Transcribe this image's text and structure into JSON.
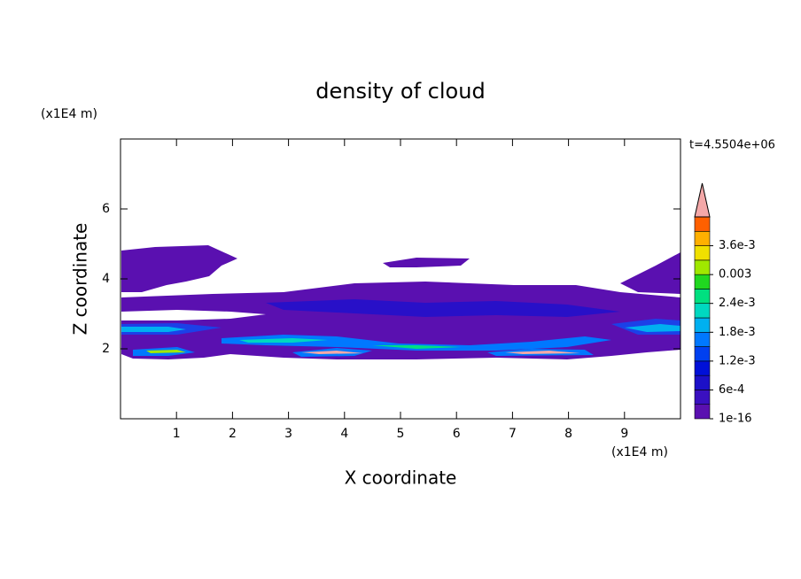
{
  "chart_data": {
    "type": "contour",
    "title": "density of cloud",
    "x_label": "X coordinate",
    "y_label": "Z coordinate",
    "x_unit": "(x1E4 m)",
    "y_unit": "(x1E4 m)",
    "annotation": "t=4.5504e+06",
    "xlim": [
      0,
      10
    ],
    "ylim": [
      0,
      8
    ],
    "xticks": [
      1,
      2,
      3,
      4,
      5,
      6,
      7,
      8,
      9
    ],
    "yticks": [
      2,
      4,
      6
    ],
    "colorbar": {
      "levels": [
        1e-16,
        0.0003,
        0.0006,
        0.0009,
        0.0012,
        0.0015,
        0.0018,
        0.0021,
        0.0024,
        0.0027,
        0.003,
        0.0033,
        0.0036,
        0.0039,
        0.0042
      ],
      "colors": [
        "#5a10b0",
        "#3a10c0",
        "#1c10c8",
        "#0010d8",
        "#0040f0",
        "#0078ff",
        "#00b0f0",
        "#00d8c0",
        "#00e080",
        "#20d820",
        "#a0e800",
        "#f0e000",
        "#ffb000",
        "#ff6000"
      ],
      "extend_color": "#f4a8a8",
      "ticks": [
        {
          "value": 1e-16,
          "label": "1e-16"
        },
        {
          "value": 0.0006,
          "label": "6e-4"
        },
        {
          "value": 0.0012,
          "label": "1.2e-3"
        },
        {
          "value": 0.0018,
          "label": "1.8e-3"
        },
        {
          "value": 0.0024,
          "label": "2.4e-3"
        },
        0.003,
        {
          "value": 0.0036,
          "label": "3.6e-3"
        }
      ]
    }
  }
}
